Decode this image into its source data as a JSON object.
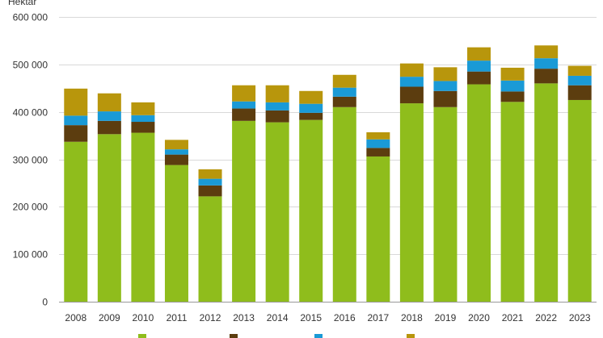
{
  "chart_data": {
    "type": "bar",
    "stacked": true,
    "ylabel": "Hektar",
    "ylim": [
      0,
      600000
    ],
    "yticks": [
      0,
      100000,
      200000,
      300000,
      400000,
      500000,
      600000
    ],
    "ytick_labels": [
      "0",
      "100 000",
      "200 000",
      "300 000",
      "400 000",
      "500 000",
      "600 000"
    ],
    "grid": true,
    "legend_position": "bottom",
    "categories": [
      "2008",
      "2009",
      "2010",
      "2011",
      "2012",
      "2013",
      "2014",
      "2015",
      "2016",
      "2017",
      "2018",
      "2019",
      "2020",
      "2021",
      "2022",
      "2023"
    ],
    "series": [
      {
        "color": "#8fbd1c",
        "values": [
          337000,
          353000,
          356000,
          288000,
          222000,
          381000,
          378000,
          383000,
          410000,
          306000,
          418000,
          410000,
          458000,
          421000,
          460000,
          425000
        ]
      },
      {
        "color": "#5c3d0f",
        "values": [
          35000,
          28000,
          23000,
          22000,
          23000,
          26000,
          25000,
          15000,
          22000,
          18000,
          35000,
          34000,
          27000,
          22000,
          31000,
          31000
        ]
      },
      {
        "color": "#1a9ad6",
        "values": [
          20000,
          20000,
          14000,
          11000,
          14000,
          15000,
          17000,
          19000,
          19000,
          18000,
          21000,
          21000,
          23000,
          23000,
          22000,
          20000
        ]
      },
      {
        "color": "#b8960c",
        "values": [
          57000,
          38000,
          27000,
          20000,
          20000,
          34000,
          36000,
          27000,
          27000,
          15000,
          28000,
          29000,
          28000,
          27000,
          27000,
          21000
        ]
      }
    ]
  }
}
